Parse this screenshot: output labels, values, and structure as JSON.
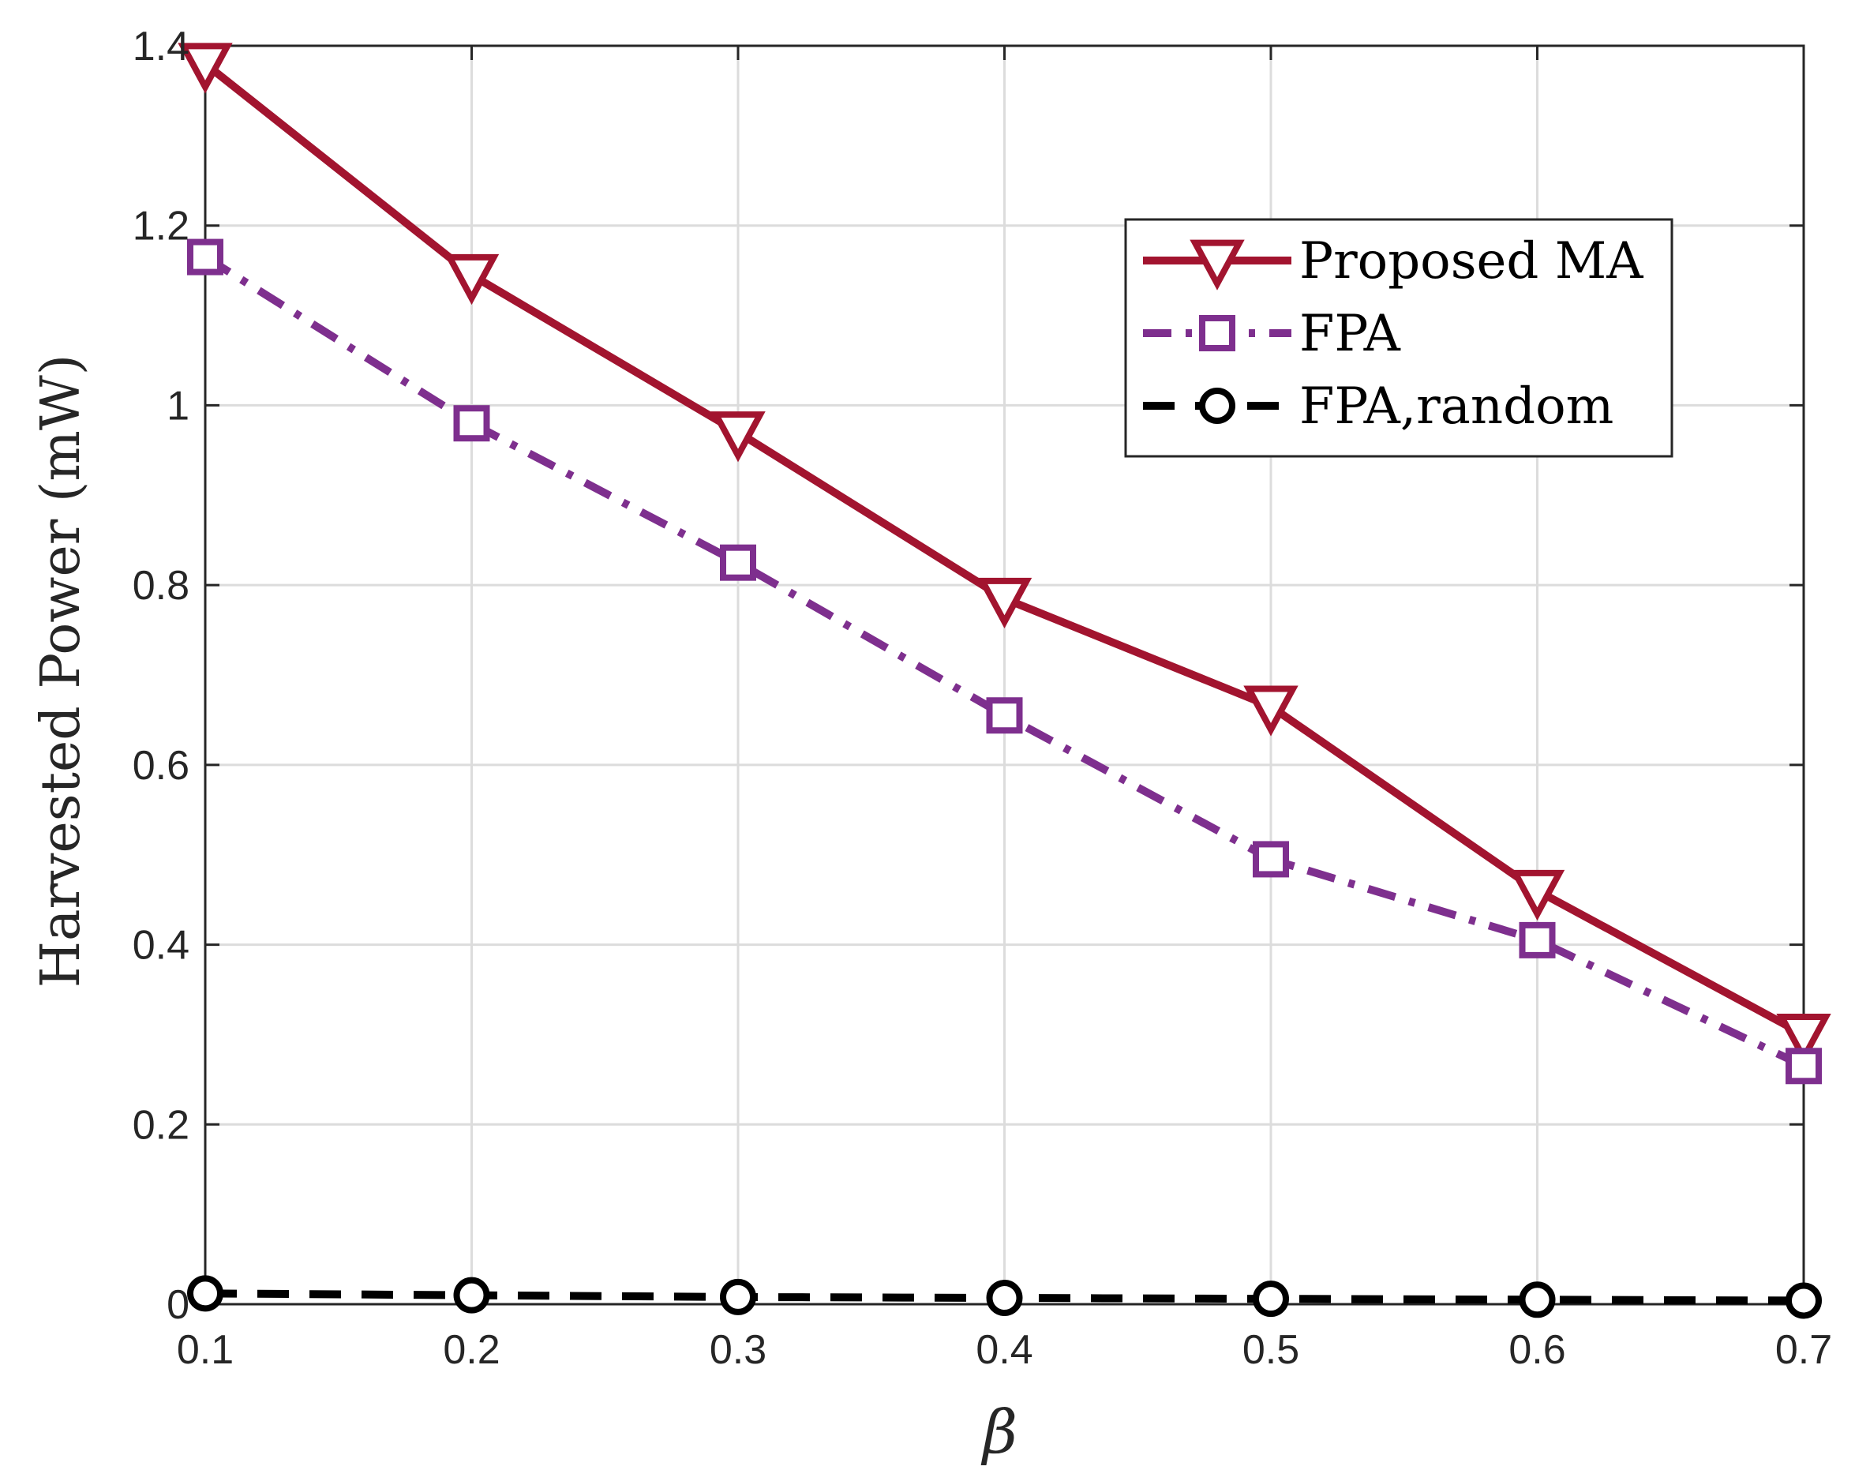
{
  "chart_data": {
    "type": "line",
    "xlabel": "β",
    "ylabel": "Harvested Power (mW)",
    "x": [
      0.1,
      0.2,
      0.3,
      0.4,
      0.5,
      0.6,
      0.7
    ],
    "xlim": [
      0.1,
      0.7
    ],
    "ylim": [
      0,
      1.4
    ],
    "xticks": [
      "0.1",
      "0.2",
      "0.3",
      "0.4",
      "0.5",
      "0.6",
      "0.7"
    ],
    "yticks": [
      "0",
      "0.2",
      "0.4",
      "0.6",
      "0.8",
      "1",
      "1.2",
      "1.4"
    ],
    "grid": true,
    "legend_position": "top-right",
    "series": [
      {
        "name": "Proposed MA",
        "values": [
          1.38,
          1.145,
          0.97,
          0.785,
          0.665,
          0.46,
          0.3
        ],
        "color": "#A2142F",
        "line": "solid",
        "marker": "triangle-down"
      },
      {
        "name": "FPA",
        "values": [
          1.165,
          0.98,
          0.825,
          0.655,
          0.495,
          0.405,
          0.265
        ],
        "color": "#7E2F8E",
        "line": "dash-dot",
        "marker": "square"
      },
      {
        "name": "FPA,random",
        "values": [
          0.012,
          0.01,
          0.008,
          0.007,
          0.006,
          0.005,
          0.004
        ],
        "color": "#000000",
        "line": "dashed",
        "marker": "circle"
      }
    ]
  }
}
